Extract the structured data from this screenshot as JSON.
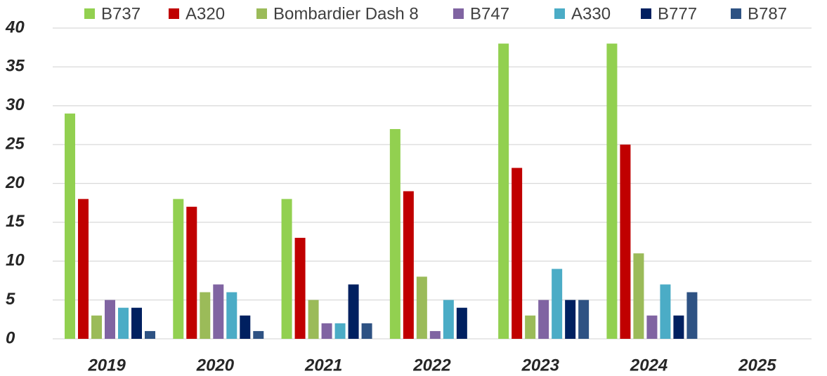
{
  "chart_data": {
    "type": "bar",
    "categories": [
      "2019",
      "2020",
      "2021",
      "2022",
      "2023",
      "2024",
      "2025"
    ],
    "series": [
      {
        "name": "B737",
        "color": "#92d050",
        "values": [
          29,
          18,
          18,
          27,
          38,
          38,
          null
        ]
      },
      {
        "name": "A320",
        "color": "#c00000",
        "values": [
          18,
          17,
          13,
          19,
          22,
          25,
          null
        ]
      },
      {
        "name": "Bombardier Dash 8",
        "color": "#9bbb59",
        "values": [
          3,
          6,
          5,
          8,
          3,
          11,
          null
        ]
      },
      {
        "name": "B747",
        "color": "#8064a2",
        "values": [
          5,
          7,
          2,
          1,
          5,
          3,
          null
        ]
      },
      {
        "name": "A330",
        "color": "#4bacc6",
        "values": [
          4,
          6,
          2,
          5,
          9,
          7,
          null
        ]
      },
      {
        "name": "B777",
        "color": "#002060",
        "values": [
          4,
          3,
          7,
          4,
          5,
          3,
          null
        ]
      },
      {
        "name": "B787",
        "color": "#2e5283",
        "values": [
          1,
          1,
          2,
          0,
          5,
          6,
          null
        ]
      }
    ],
    "ylim": [
      0,
      40
    ],
    "yticks": [
      0,
      5,
      10,
      15,
      20,
      25,
      30,
      35,
      40
    ],
    "grid": true,
    "legend": "top"
  }
}
